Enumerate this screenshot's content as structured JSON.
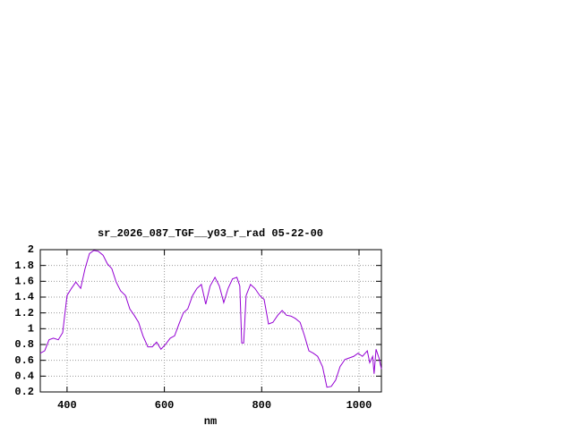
{
  "chart_data": {
    "type": "line",
    "title": "sr_2026_087_TGF__y03_r_rad 05-22-00",
    "x_label": "nm",
    "x": [
      345,
      354,
      363,
      372,
      382,
      391,
      400,
      409,
      418,
      428,
      437,
      446,
      455,
      464,
      474,
      483,
      492,
      501,
      510,
      520,
      529,
      538,
      547,
      556,
      566,
      575,
      584,
      593,
      602,
      612,
      621,
      630,
      639,
      648,
      658,
      667,
      676,
      685,
      694,
      704,
      713,
      722,
      731,
      740,
      749,
      755,
      759,
      763,
      768,
      777,
      786,
      796,
      805,
      814,
      823,
      833,
      842,
      851,
      860,
      869,
      879,
      888,
      897,
      906,
      915,
      925,
      934,
      943,
      952,
      961,
      971,
      980,
      989,
      998,
      1007,
      1017,
      1022,
      1028,
      1031,
      1035,
      1041,
      1046
    ],
    "values": [
      0.69,
      0.72,
      0.86,
      0.88,
      0.86,
      0.95,
      1.42,
      1.51,
      1.59,
      1.51,
      1.76,
      1.95,
      1.99,
      1.98,
      1.93,
      1.82,
      1.76,
      1.59,
      1.48,
      1.42,
      1.25,
      1.17,
      1.08,
      0.91,
      0.77,
      0.77,
      0.83,
      0.74,
      0.8,
      0.88,
      0.91,
      1.06,
      1.2,
      1.25,
      1.42,
      1.51,
      1.56,
      1.31,
      1.54,
      1.65,
      1.54,
      1.33,
      1.51,
      1.63,
      1.65,
      1.54,
      0.82,
      0.82,
      1.42,
      1.56,
      1.51,
      1.42,
      1.37,
      1.06,
      1.08,
      1.17,
      1.23,
      1.17,
      1.16,
      1.13,
      1.08,
      0.91,
      0.72,
      0.69,
      0.65,
      0.52,
      0.26,
      0.27,
      0.35,
      0.52,
      0.61,
      0.63,
      0.65,
      0.69,
      0.65,
      0.72,
      0.57,
      0.65,
      0.43,
      0.74,
      0.63,
      0.49
    ],
    "color": "#9400d3",
    "xlim": [
      345,
      1046
    ],
    "xticks": [
      400,
      600,
      800,
      1000
    ],
    "ylim": [
      0.2,
      2
    ],
    "yticks": [
      0.2,
      0.4,
      0.6,
      0.8,
      1,
      1.2,
      1.4,
      1.6,
      1.8,
      2
    ],
    "grid": true
  }
}
